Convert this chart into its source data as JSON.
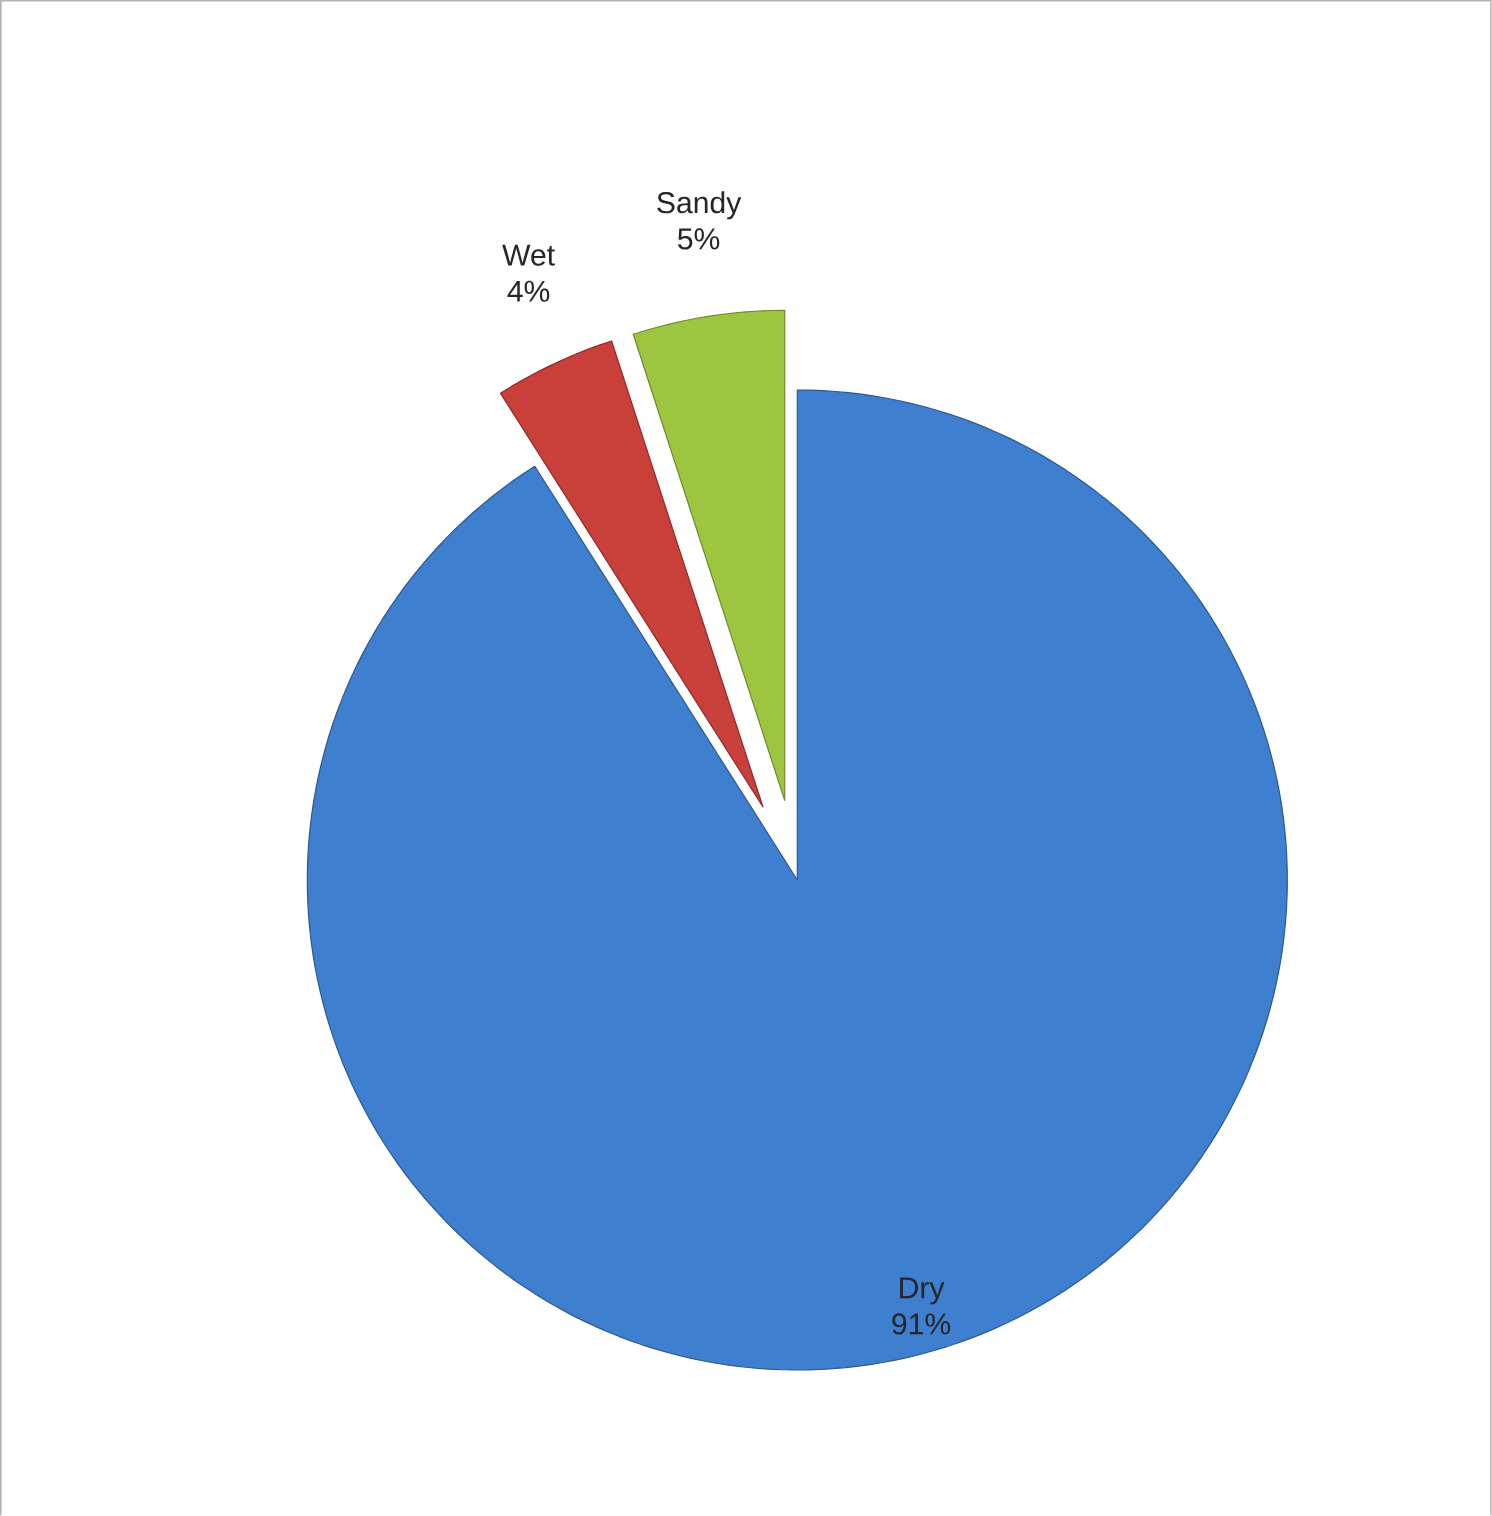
{
  "chart_data": {
    "type": "pie",
    "categories": [
      "Dry",
      "Wet",
      "Sandy"
    ],
    "values": [
      91,
      4,
      5
    ],
    "value_labels": [
      "91%",
      "4%",
      "5%"
    ],
    "colors": [
      "#3f7fcf",
      "#c9403b",
      "#9cc640"
    ]
  }
}
